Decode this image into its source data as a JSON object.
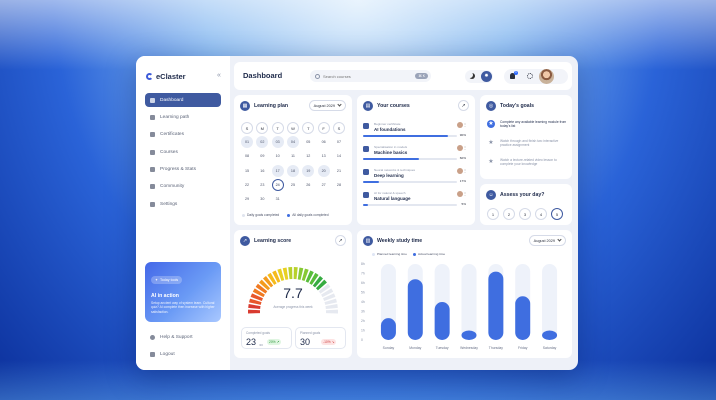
{
  "app": {
    "name": "eClaster"
  },
  "sidebar": {
    "items": [
      {
        "label": "Dashboard",
        "active": true,
        "icon": "grid-icon"
      },
      {
        "label": "Learning path",
        "icon": "path-icon"
      },
      {
        "label": "Certificates",
        "icon": "certificate-icon"
      },
      {
        "label": "Courses",
        "icon": "folder-icon"
      },
      {
        "label": "Progress & Stats",
        "icon": "chart-icon"
      },
      {
        "label": "Community",
        "icon": "people-icon"
      },
      {
        "label": "Settings",
        "icon": "gear-icon"
      }
    ],
    "promo": {
      "pill": "Today tools",
      "title": "AI in action",
      "body": "Setup ancient way of system learn. Cultural quiz? AI complete then increase with higher satisfaction."
    },
    "bottom": [
      {
        "label": "Help & Support",
        "icon": "help-icon"
      },
      {
        "label": "Logout",
        "icon": "logout-icon"
      }
    ]
  },
  "header": {
    "title": "Dashboard",
    "search_placeholder": "Search courses",
    "shortcut": "⌘ K",
    "notification_count": "1"
  },
  "learning_plan": {
    "title": "Learning plan",
    "month": "August 2029",
    "weekdays": [
      "S",
      "M",
      "T",
      "W",
      "T",
      "F",
      "S"
    ],
    "weeks": [
      [
        "01",
        "02",
        "03",
        "04",
        "05",
        "06",
        "07"
      ],
      [
        "08",
        "09",
        "10",
        "11",
        "12",
        "13",
        "14"
      ],
      [
        "15",
        "16",
        "17",
        "18",
        "19",
        "20",
        "21"
      ],
      [
        "22",
        "23",
        "24",
        "25",
        "26",
        "27",
        "28"
      ],
      [
        "29",
        "30",
        "31",
        "",
        "",
        "",
        ""
      ]
    ],
    "done_days": [
      "01",
      "02",
      "03",
      "04",
      "17",
      "18",
      "19",
      "20"
    ],
    "today": "24",
    "legend_daily": "Daily goals completed",
    "legend_all": "All daily goals completed"
  },
  "courses": {
    "title": "Your courses",
    "items": [
      {
        "category": "Beginner certificate",
        "name": "AI foundations",
        "progress": 90,
        "pct_label": "90%"
      },
      {
        "category": "Specialisation in models",
        "name": "Machine basics",
        "progress": 60,
        "pct_label": "60%"
      },
      {
        "category": "Neural networks & techniques",
        "name": "Deep learning",
        "progress": 17,
        "pct_label": "17%"
      },
      {
        "category": "AI for natural & speech",
        "name": "Natural language",
        "progress": 5,
        "pct_label": "5%"
      }
    ]
  },
  "goals": {
    "title": "Today's goals",
    "items": [
      {
        "text": "Complete any available learning module from today's list",
        "done": true
      },
      {
        "text": "Watch through and finish two interactive practice assignment",
        "done": false
      },
      {
        "text": "Watch a lecture-related video lesson to complete your knowledge",
        "done": false
      }
    ]
  },
  "assess": {
    "title": "Assess your day?",
    "options": [
      "1",
      "2",
      "3",
      "4",
      "5"
    ],
    "selected": "5"
  },
  "score": {
    "title": "Learning score",
    "value": "7.7",
    "fraction": 0.77,
    "caption": "Average progress this week",
    "completed_label": "Completed goals",
    "completed_value": "23",
    "completed_unit": "/30",
    "completed_badge": "20% ↗",
    "planned_label": "Planned goals",
    "planned_value": "30",
    "planned_badge": "-10% ↘",
    "colors": [
      "#d93b30",
      "#e8562a",
      "#f07a22",
      "#f39b1e",
      "#f5bb1c",
      "#e8d021",
      "#b8d12a",
      "#86c934",
      "#58bd3b",
      "#36ac41"
    ],
    "track_color": "#e6e9f0"
  },
  "study": {
    "title": "Weekly study time",
    "month": "August 2029",
    "legend_planned": "Planned learning time",
    "legend_actual": "Actual learning time",
    "chart_data": {
      "type": "bar",
      "categories": [
        "Sunday",
        "Monday",
        "Tuesday",
        "Wednesday",
        "Thursday",
        "Friday",
        "Saturday"
      ],
      "series": [
        {
          "name": "Planned learning time",
          "values": [
            8,
            8,
            8,
            8,
            8,
            8,
            8
          ]
        },
        {
          "name": "Actual learning time",
          "values": [
            2.3,
            6.4,
            4,
            1,
            7.2,
            4.6,
            1
          ]
        }
      ],
      "yticks": [
        "8h",
        "7h",
        "6h",
        "5h",
        "4h",
        "3h",
        "2h",
        "1h",
        "0"
      ],
      "ylim": [
        0,
        8
      ]
    }
  }
}
